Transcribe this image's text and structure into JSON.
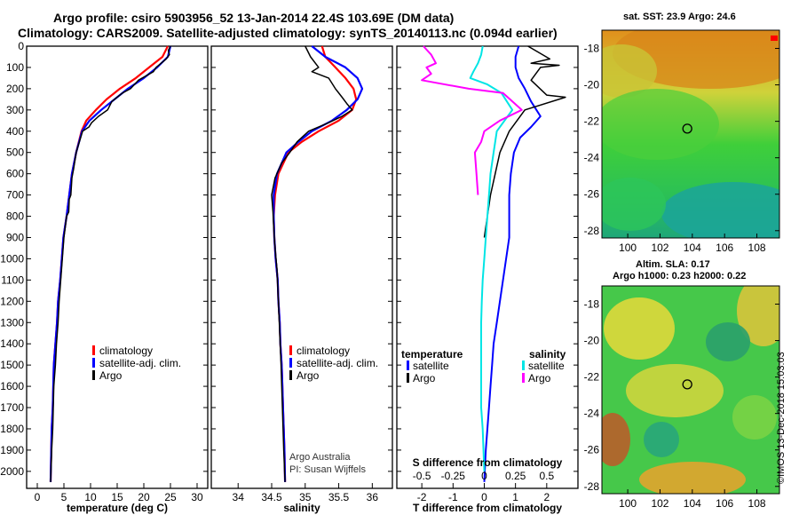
{
  "header": {
    "line1": "Argo profile: csiro 5903956_52 13-Jan-2014 22.4S 103.69E (DM data)",
    "line2": "Climatology: CARS2009. Satellite-adjusted climatology: synTS_20140113.nc (0.094d earlier)"
  },
  "credits": {
    "org": "Argo Australia",
    "pi": "PI: Susan Wijffels"
  },
  "colors": {
    "clim": "#ff0000",
    "sat": "#0000ff",
    "argo": "#000000",
    "sat_s": "#00e5e5",
    "argo_s": "#ff00ff"
  },
  "chart_data": [
    {
      "type": "line",
      "title": "",
      "xlabel": "temperature (deg C)",
      "ylabel": "",
      "xlim": [
        -2,
        32
      ],
      "ylim": [
        2080,
        0
      ],
      "xticks": [
        "0",
        "5",
        "10",
        "15",
        "20",
        "25",
        "30"
      ],
      "yticks": [
        "0",
        "100",
        "200",
        "300",
        "400",
        "500",
        "600",
        "700",
        "800",
        "900",
        "1000",
        "1100",
        "1200",
        "1300",
        "1400",
        "1500",
        "1600",
        "1700",
        "1800",
        "1900",
        "2000"
      ],
      "legend": {
        "placement": "lower-right",
        "entries": [
          "climatology",
          "satellite-adj. clim.",
          "Argo"
        ]
      },
      "series": [
        {
          "name": "climatology",
          "x": [
            24.5,
            23.5,
            21,
            18.5,
            15.5,
            13,
            11,
            9.2,
            8.3,
            7.3,
            6.5,
            6.0,
            5.5,
            4.9,
            4.6,
            4.3,
            3.9,
            3.7,
            3.4,
            3.1,
            3.0,
            2.9,
            2.7,
            2.5
          ],
          "y": [
            0,
            50,
            100,
            150,
            200,
            250,
            300,
            350,
            400,
            500,
            600,
            700,
            800,
            900,
            1000,
            1100,
            1200,
            1300,
            1400,
            1500,
            1600,
            1700,
            1800,
            2050
          ]
        },
        {
          "name": "satellite-adj. clim.",
          "x": [
            25,
            24.5,
            22.5,
            20,
            17,
            14.5,
            12,
            9.8,
            8.4,
            7.3,
            6.5,
            6.0,
            5.5,
            4.9,
            4.6,
            4.3,
            3.9,
            3.7,
            3.4,
            3.1,
            3.0,
            2.9,
            2.7,
            2.5
          ],
          "y": [
            0,
            50,
            100,
            150,
            200,
            250,
            300,
            350,
            400,
            500,
            600,
            700,
            800,
            900,
            1000,
            1100,
            1200,
            1300,
            1400,
            1500,
            1600,
            1700,
            1800,
            2050
          ]
        },
        {
          "name": "Argo",
          "x": [
            25,
            24.6,
            24.8,
            24.2,
            22.3,
            21.8,
            19,
            17.5,
            16,
            14,
            13.2,
            11.5,
            10.2,
            9.7,
            8.5,
            7.9,
            7.3,
            6.8,
            6.5,
            6.3,
            6.0,
            5.9,
            5.5,
            5.0,
            4.7,
            4.4,
            4.1,
            3.9,
            3.6,
            3.4,
            3.1,
            3.0,
            2.9,
            2.7,
            2.5
          ],
          "y": [
            0,
            20,
            40,
            60,
            100,
            120,
            160,
            200,
            220,
            260,
            300,
            330,
            360,
            380,
            400,
            450,
            500,
            580,
            620,
            700,
            720,
            780,
            800,
            900,
            1000,
            1100,
            1200,
            1300,
            1400,
            1500,
            1600,
            1700,
            1800,
            1900,
            2050
          ]
        }
      ]
    },
    {
      "type": "line",
      "title": "",
      "xlabel": "salinity",
      "ylabel": "",
      "xlim": [
        33.6,
        36.3
      ],
      "ylim": [
        2080,
        0
      ],
      "xticks": [
        "34",
        "34.5",
        "35",
        "35.5",
        "36"
      ],
      "legend": {
        "placement": "lower-right",
        "entries": [
          "climatology",
          "satellite-adj. clim.",
          "Argo"
        ]
      },
      "series": [
        {
          "name": "climatology",
          "x": [
            35.25,
            35.3,
            35.45,
            35.6,
            35.72,
            35.76,
            35.7,
            35.5,
            35.2,
            34.95,
            34.75,
            34.6,
            34.55,
            34.53,
            34.54,
            34.56,
            34.59,
            34.6,
            34.62,
            34.63,
            34.65,
            34.66,
            34.67,
            34.68,
            34.69,
            34.7
          ],
          "y": [
            0,
            50,
            100,
            150,
            200,
            250,
            300,
            350,
            400,
            450,
            500,
            600,
            700,
            800,
            900,
            1000,
            1100,
            1200,
            1300,
            1400,
            1500,
            1600,
            1700,
            1800,
            1900,
            2050
          ]
        },
        {
          "name": "satellite-adj. clim.",
          "x": [
            35.1,
            35.3,
            35.6,
            35.78,
            35.85,
            35.78,
            35.62,
            35.4,
            35.1,
            34.9,
            34.72,
            34.58,
            34.53,
            34.53,
            34.54,
            34.56,
            34.59,
            34.6,
            34.62,
            34.63,
            34.65,
            34.66,
            34.67,
            34.68,
            34.69,
            34.7
          ],
          "y": [
            0,
            50,
            100,
            150,
            200,
            250,
            300,
            350,
            400,
            450,
            500,
            600,
            700,
            800,
            900,
            1000,
            1100,
            1200,
            1300,
            1400,
            1500,
            1600,
            1700,
            1800,
            1900,
            2050
          ]
        },
        {
          "name": "Argo",
          "x": [
            35.0,
            35.08,
            35.2,
            35.1,
            35.35,
            35.45,
            35.55,
            35.62,
            35.7,
            35.55,
            35.35,
            35.05,
            34.88,
            34.77,
            34.65,
            34.55,
            34.5,
            34.52,
            34.53,
            34.55,
            34.58,
            34.6,
            34.62,
            34.64,
            34.66,
            34.68,
            34.7
          ],
          "y": [
            0,
            50,
            100,
            120,
            150,
            200,
            240,
            270,
            300,
            330,
            360,
            400,
            450,
            500,
            550,
            620,
            700,
            780,
            850,
            950,
            1050,
            1200,
            1350,
            1500,
            1700,
            1900,
            2050
          ]
        }
      ]
    },
    {
      "type": "line",
      "title": "",
      "xlabel": "T difference from climatology",
      "ylabel": "",
      "xlim": [
        -2.8,
        3.0
      ],
      "ylim": [
        2080,
        0
      ],
      "xticks": [
        "-2",
        "-1",
        "0",
        "1",
        "2"
      ],
      "top_axis_label": "S difference from climatology",
      "top_ticks": [
        "-0.5",
        "-0.25",
        "0",
        "0.25",
        "0.5"
      ],
      "legend": {
        "placement": "lower",
        "entries": [
          "temperature",
          "satellite",
          "Argo",
          "salinity",
          "satellite",
          "Argo"
        ]
      },
      "series": [
        {
          "name": "temperature satellite",
          "x": [
            1.1,
            1.0,
            1.0,
            1.1,
            1.3,
            1.5,
            1.8,
            1.5,
            1.15,
            0.95,
            0.85,
            0.8,
            0.8,
            0.8,
            0.7,
            0.6,
            0.5,
            0.4,
            0.3,
            0.25,
            0.2,
            0.15,
            0.1,
            0.05,
            0.0
          ],
          "y": [
            0,
            50,
            100,
            150,
            200,
            260,
            330,
            380,
            430,
            500,
            600,
            700,
            800,
            900,
            1000,
            1100,
            1200,
            1300,
            1400,
            1500,
            1600,
            1700,
            1800,
            1900,
            2050
          ]
        },
        {
          "name": "temperature Argo",
          "x": [
            1.4,
            2.1,
            1.5,
            2.4,
            1.8,
            1.5,
            2.0,
            2.6,
            1.3,
            0.8,
            0.5,
            0.35,
            0.2,
            0.1,
            0.0
          ],
          "y": [
            0,
            60,
            80,
            90,
            100,
            160,
            230,
            240,
            300,
            400,
            500,
            600,
            700,
            800,
            900
          ]
        },
        {
          "name": "salinity satellite",
          "x": [
            -0.05,
            -0.1,
            -0.2,
            -0.35,
            -0.45,
            0.1,
            0.55,
            0.9,
            0.4,
            0.3,
            0.2,
            0.15,
            0.1,
            0.05,
            0.0,
            -0.05,
            -0.08,
            -0.1,
            -0.1,
            -0.1,
            -0.1,
            -0.1,
            -0.05,
            0.0
          ],
          "y": [
            0,
            40,
            80,
            120,
            150,
            180,
            220,
            300,
            400,
            500,
            600,
            700,
            800,
            900,
            1000,
            1100,
            1200,
            1300,
            1400,
            1500,
            1600,
            1700,
            1800,
            2000
          ]
        },
        {
          "name": "salinity Argo",
          "x": [
            -1.95,
            -1.7,
            -1.55,
            -1.85,
            -1.7,
            -2.0,
            -0.5,
            0.6,
            1.2,
            0.5,
            0.0,
            -0.1,
            -0.3,
            -0.25,
            -0.2
          ],
          "y": [
            0,
            40,
            80,
            100,
            130,
            160,
            200,
            220,
            300,
            350,
            400,
            450,
            500,
            600,
            700
          ]
        }
      ]
    },
    {
      "type": "heatmap",
      "title": "sat. SST: 23.9 Argo: 24.6",
      "xlabel": "",
      "ylabel": "",
      "xticks": [
        "100",
        "102",
        "104",
        "106",
        "108"
      ],
      "yticks": [
        "-18",
        "-20",
        "-22",
        "-24",
        "-26",
        "-28"
      ],
      "marker": {
        "lon": 103.69,
        "lat": -22.4
      }
    },
    {
      "type": "heatmap",
      "title": "Altim. SLA: 0.17",
      "subtitle": "Argo h1000: 0.23 h2000: 0.22",
      "xlabel": "",
      "ylabel": "",
      "xticks": [
        "100",
        "102",
        "104",
        "106",
        "108"
      ],
      "yticks": [
        "-18",
        "-20",
        "-22",
        "-24",
        "-26",
        "-28"
      ],
      "marker": {
        "lon": 103.69,
        "lat": -22.4
      }
    }
  ],
  "footer": {
    "stamp": "©IMOS 13-Dec-2018 15:03:03"
  }
}
